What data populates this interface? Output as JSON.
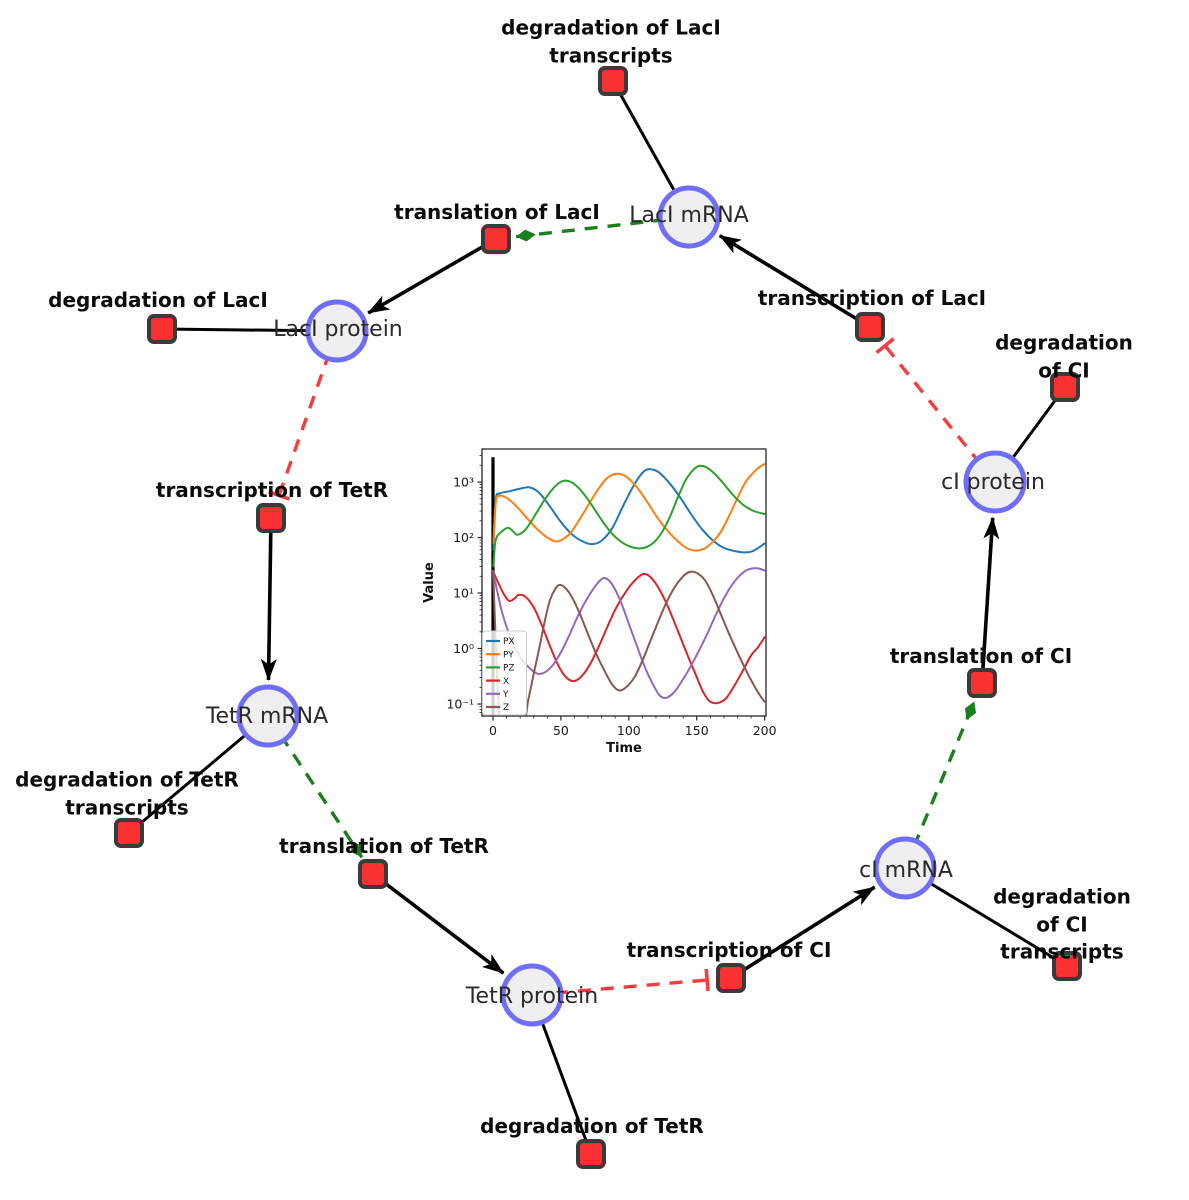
{
  "figure": {
    "background": "#ffffff"
  },
  "style": {
    "species_fill": "#efeff1",
    "species_stroke": "#6e6ef9",
    "reaction_fill": "#f93131",
    "reaction_stroke": "#3a3a3a",
    "edge_color": "#000000",
    "activation_color": "#1b7f1b",
    "inhibition_color": "#fa3b3b",
    "task_label_color": "#0b0b0b",
    "species_label_color": "#2a2a2a"
  },
  "labels": {
    "deg_laci_transcripts": {
      "text": "degradation of LacI\ntranscripts"
    },
    "translation_laci": {
      "text": "translation of LacI"
    },
    "laci_mrna": {
      "text": "LacI mRNA"
    },
    "transcription_laci": {
      "text": "transcription of LacI"
    },
    "deg_laci": {
      "text": "degradation of LacI"
    },
    "laci_protein": {
      "text": "LacI protein"
    },
    "deg_ci": {
      "text": "degradation of CI"
    },
    "ci_protein": {
      "text": "cI protein"
    },
    "transcription_tetr": {
      "text": "transcription of TetR"
    },
    "translation_ci": {
      "text": "translation of CI"
    },
    "tetr_mrna": {
      "text": "TetR mRNA"
    },
    "deg_tetr_transcripts": {
      "text": "degradation of TetR\ntranscripts"
    },
    "translation_tetr": {
      "text": "translation of TetR"
    },
    "ci_mrna": {
      "text": "cI mRNA"
    },
    "deg_ci_transcripts": {
      "text": "degradation of CI\ntranscripts"
    },
    "transcription_ci": {
      "text": "transcription of CI"
    },
    "tetr_protein": {
      "text": "TetR protein"
    },
    "deg_tetr": {
      "text": "degradation of TetR"
    }
  },
  "graph": {
    "species_nodes": [
      "LacI mRNA",
      "LacI protein",
      "TetR mRNA",
      "TetR protein",
      "cI mRNA",
      "cI protein"
    ],
    "reaction_nodes": [
      "degradation of LacI transcripts",
      "translation of LacI",
      "transcription of LacI",
      "degradation of LacI",
      "degradation of CI",
      "transcription of TetR",
      "translation of CI",
      "translation of TetR",
      "degradation of TetR transcripts",
      "transcription of CI",
      "degradation of CI transcripts",
      "degradation of TetR"
    ],
    "edges": [
      {
        "from": "LacI mRNA",
        "to": "degradation of LacI transcripts",
        "type": "plain"
      },
      {
        "from": "LacI mRNA",
        "to": "translation of LacI",
        "type": "activation"
      },
      {
        "from": "translation of LacI",
        "to": "LacI protein",
        "type": "arrow"
      },
      {
        "from": "LacI protein",
        "to": "degradation of LacI",
        "type": "plain"
      },
      {
        "from": "LacI protein",
        "to": "transcription of TetR",
        "type": "inhibition"
      },
      {
        "from": "transcription of TetR",
        "to": "TetR mRNA",
        "type": "arrow"
      },
      {
        "from": "TetR mRNA",
        "to": "degradation of TetR transcripts",
        "type": "plain"
      },
      {
        "from": "TetR mRNA",
        "to": "translation of TetR",
        "type": "activation"
      },
      {
        "from": "translation of TetR",
        "to": "TetR protein",
        "type": "arrow"
      },
      {
        "from": "TetR protein",
        "to": "degradation of TetR",
        "type": "plain"
      },
      {
        "from": "TetR protein",
        "to": "transcription of CI",
        "type": "inhibition"
      },
      {
        "from": "transcription of CI",
        "to": "cI mRNA",
        "type": "arrow"
      },
      {
        "from": "cI mRNA",
        "to": "degradation of CI transcripts",
        "type": "plain"
      },
      {
        "from": "cI mRNA",
        "to": "translation of CI",
        "type": "activation"
      },
      {
        "from": "translation of CI",
        "to": "cI protein",
        "type": "arrow"
      },
      {
        "from": "cI protein",
        "to": "degradation of CI",
        "type": "plain"
      },
      {
        "from": "cI protein",
        "to": "transcription of LacI",
        "type": "inhibition"
      },
      {
        "from": "transcription of LacI",
        "to": "LacI mRNA",
        "type": "arrow"
      }
    ]
  },
  "chart_data": {
    "type": "line",
    "title": "",
    "xlabel": "Time",
    "ylabel": "Value",
    "y_scale": "log",
    "x_ticks": [
      0,
      50,
      100,
      150,
      200
    ],
    "y_tick_labels": [
      "10⁻¹",
      "10⁰",
      "10¹",
      "10²",
      "10³"
    ],
    "y_tick_values": [
      0.1,
      1,
      10,
      100,
      1000
    ],
    "x_range": [
      -8.1,
      201
    ],
    "y_range_log": [
      -1.216,
      3.595
    ],
    "grid": false,
    "legend_position": "lower left",
    "vline": {
      "x": 0,
      "color": "#000000",
      "ymin": 0.0609,
      "ymax": 2800
    },
    "series": [
      {
        "name": "PX",
        "color": "#1f77b4",
        "x": [
          0.3,
          2,
          5,
          12,
          20,
          27,
          34,
          42,
          50,
          58,
          66,
          73,
          80,
          88,
          96,
          104,
          111,
          116,
          122,
          130,
          138,
          146,
          154,
          162,
          170,
          178,
          186,
          192,
          200
        ],
        "y": [
          60,
          480,
          620,
          680,
          760,
          800,
          640,
          360,
          190,
          115,
          85,
          76,
          88,
          150,
          380,
          900,
          1550,
          1700,
          1500,
          950,
          520,
          260,
          140,
          88,
          65,
          57,
          54,
          58,
          78
        ]
      },
      {
        "name": "PY",
        "color": "#ff7f0e",
        "x": [
          0.3,
          2,
          4,
          10,
          18,
          26,
          34,
          40,
          46,
          52,
          58,
          66,
          74,
          82,
          88,
          93,
          99,
          106,
          114,
          122,
          130,
          138,
          144,
          150,
          156,
          162,
          168,
          174,
          180,
          186,
          192,
          196,
          200
        ],
        "y": [
          80,
          420,
          560,
          520,
          350,
          210,
          130,
          100,
          85,
          95,
          130,
          260,
          550,
          1050,
          1350,
          1400,
          1200,
          800,
          420,
          210,
          120,
          78,
          62,
          58,
          64,
          85,
          130,
          250,
          520,
          1000,
          1500,
          1850,
          2100
        ]
      },
      {
        "name": "PZ",
        "color": "#2ca02c",
        "x": [
          0.3,
          2,
          6,
          11,
          15,
          18,
          24,
          30,
          38,
          46,
          52,
          58,
          64,
          70,
          76,
          82,
          88,
          94,
          100,
          106,
          112,
          118,
          124,
          130,
          136,
          142,
          148,
          152,
          157,
          162,
          168,
          174,
          180,
          186,
          192,
          200
        ],
        "y": [
          30,
          90,
          125,
          150,
          128,
          112,
          140,
          230,
          480,
          850,
          1050,
          980,
          740,
          480,
          290,
          175,
          115,
          85,
          70,
          64,
          66,
          80,
          120,
          230,
          520,
          1100,
          1700,
          1950,
          1850,
          1500,
          1050,
          700,
          480,
          360,
          300,
          265
        ]
      },
      {
        "name": "X",
        "color": "#d62728",
        "x": [
          0,
          4,
          8,
          12,
          16,
          19,
          24,
          30,
          36,
          42,
          48,
          54,
          60,
          66,
          72,
          78,
          84,
          90,
          96,
          103,
          111,
          118,
          126,
          134,
          142,
          149,
          155,
          160,
          166,
          172,
          178,
          184,
          190,
          195,
          200
        ],
        "y": [
          25,
          15,
          9.5,
          7.2,
          8,
          9.3,
          8.5,
          5.5,
          2.6,
          1.1,
          0.5,
          0.3,
          0.26,
          0.33,
          0.55,
          1.1,
          2.4,
          5,
          9,
          15.5,
          22,
          17,
          8,
          2.8,
          0.9,
          0.35,
          0.16,
          0.11,
          0.105,
          0.13,
          0.22,
          0.4,
          0.75,
          1.05,
          1.6
        ]
      },
      {
        "name": "Y",
        "color": "#9467bd",
        "x": [
          0,
          3,
          7,
          12,
          17,
          22,
          28,
          33,
          38,
          44,
          50,
          56,
          62,
          68,
          74,
          79,
          83,
          88,
          94,
          100,
          106,
          112,
          118,
          123,
          128,
          134,
          140,
          146,
          152,
          158,
          164,
          170,
          176,
          182,
          187,
          192,
          196,
          200
        ],
        "y": [
          25,
          11,
          4.2,
          1.8,
          0.95,
          0.6,
          0.42,
          0.35,
          0.37,
          0.5,
          0.85,
          1.7,
          3.6,
          7,
          12,
          17,
          18.5,
          14,
          7,
          2.8,
          1.1,
          0.45,
          0.22,
          0.14,
          0.13,
          0.17,
          0.28,
          0.5,
          0.95,
          1.9,
          4,
          8,
          14,
          21,
          26,
          28,
          27.5,
          25.5
        ]
      },
      {
        "name": "Z",
        "color": "#8c564b",
        "x": [
          0,
          1.5,
          3,
          4.5,
          6,
          22,
          26,
          30,
          34,
          38,
          42,
          46,
          49,
          53,
          58,
          64,
          70,
          76,
          82,
          88,
          93,
          98,
          104,
          110,
          116,
          122,
          128,
          134,
          140,
          145,
          150,
          156,
          162,
          168,
          174,
          180,
          186,
          192,
          196,
          200
        ],
        "y": [
          25,
          3,
          0.3,
          0.08,
          0.05,
          0.05,
          0.12,
          0.35,
          1,
          3,
          7.5,
          12,
          14,
          12.5,
          8.5,
          4.2,
          1.8,
          0.8,
          0.4,
          0.22,
          0.175,
          0.2,
          0.3,
          0.6,
          1.4,
          3.2,
          7,
          13,
          20,
          24,
          23,
          17,
          9,
          4,
          1.8,
          0.85,
          0.42,
          0.22,
          0.15,
          0.11
        ]
      }
    ]
  }
}
